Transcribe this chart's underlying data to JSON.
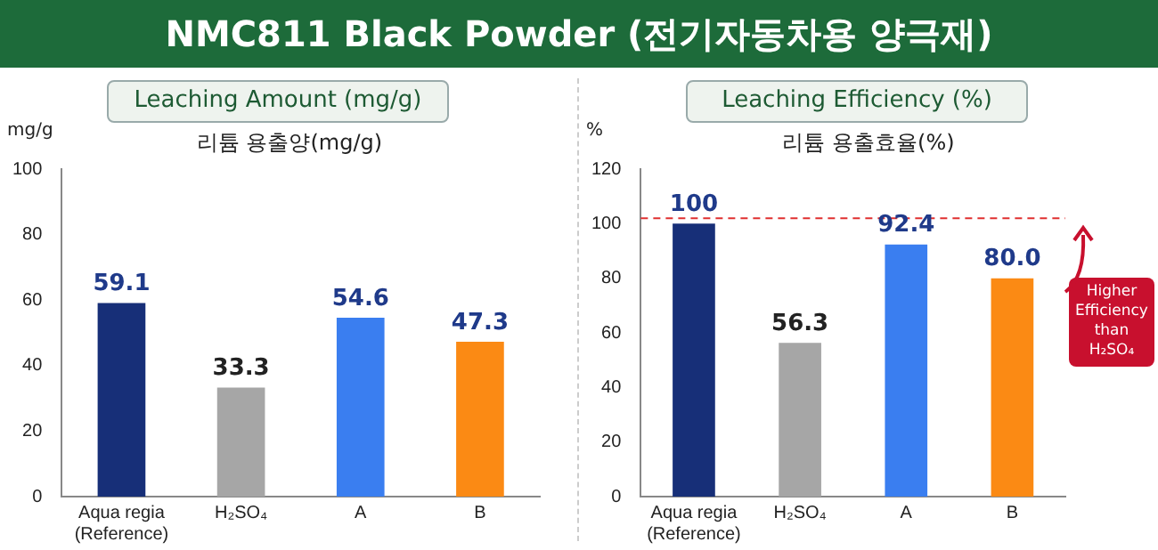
{
  "chart_data": [
    {
      "type": "bar",
      "title": "Leaching Amount (mg/g)",
      "subtitle": "리튬 용출양(mg/g)",
      "ylabel": "mg/g",
      "annotations": [
        "NMC811 Black Powder (전기자동차용 양극재)"
      ],
      "categories": [
        "Aqua regia (Reference)",
        "H₂SO₄",
        "A",
        "B"
      ],
      "values": [
        59.1,
        33.3,
        54.6,
        47.3
      ],
      "colors": [
        "#172f78",
        "#a6a6a6",
        "#3a7ef0",
        "#fb8a14"
      ],
      "value_labels": [
        "59.1",
        "33.3",
        "54.6",
        "47.3"
      ],
      "ylim": [
        0,
        100
      ],
      "yticks": [
        0,
        20,
        40,
        60,
        80,
        100
      ],
      "grid": false,
      "legend": false
    },
    {
      "type": "bar",
      "title": "Leaching Efficiency (%)",
      "subtitle": "리튬 용출효율(%)",
      "ylabel": "%",
      "annotations": [
        "Higher Efficiency than H₂SO₄"
      ],
      "categories": [
        "Aqua regia (Reference)",
        "H₂SO₄",
        "A",
        "B"
      ],
      "values": [
        100,
        56.3,
        92.4,
        80.0
      ],
      "colors": [
        "#172f78",
        "#a6a6a6",
        "#3a7ef0",
        "#fb8a14"
      ],
      "value_labels": [
        "100",
        "56.3",
        "92.4",
        "80.0"
      ],
      "ref_lines": [
        {
          "axis": "y",
          "value": 102,
          "color": "#e03030",
          "line_style": "dashed"
        }
      ],
      "ylim": [
        0,
        120
      ],
      "yticks": [
        0,
        20,
        40,
        60,
        80,
        100,
        120
      ],
      "grid": false,
      "legend": false
    }
  ]
}
